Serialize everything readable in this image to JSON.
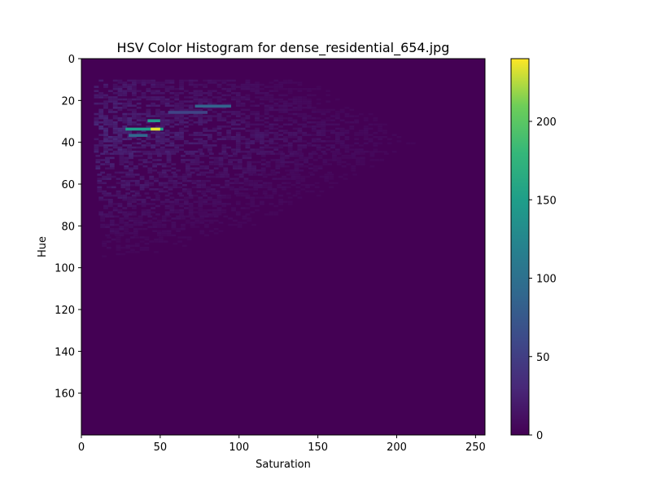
{
  "chart_data": {
    "type": "heatmap",
    "title": "HSV Color Histogram for dense_residential_654.jpg",
    "xlabel": "Saturation",
    "ylabel": "Hue",
    "xlim": [
      0,
      256
    ],
    "ylim": [
      180,
      0
    ],
    "x_ticks": [
      0,
      50,
      100,
      150,
      200,
      250
    ],
    "y_ticks": [
      0,
      20,
      40,
      60,
      80,
      100,
      120,
      140,
      160
    ],
    "colormap": "viridis",
    "colorbar": {
      "min": 0,
      "max": 240,
      "ticks": [
        0,
        50,
        100,
        150,
        200
      ]
    },
    "grid": false,
    "hot_spots": [
      {
        "hue": 33,
        "saturation": [
          28,
          52
        ],
        "value": 150
      },
      {
        "hue": 33,
        "saturation": [
          44,
          50
        ],
        "value": 235
      },
      {
        "hue": 29,
        "saturation": [
          42,
          50
        ],
        "value": 145
      },
      {
        "hue": 22,
        "saturation": [
          72,
          95
        ],
        "value": 85
      },
      {
        "hue": 36,
        "saturation": [
          30,
          42
        ],
        "value": 90
      },
      {
        "hue": 25,
        "saturation": [
          55,
          80
        ],
        "value": 55
      }
    ]
  }
}
